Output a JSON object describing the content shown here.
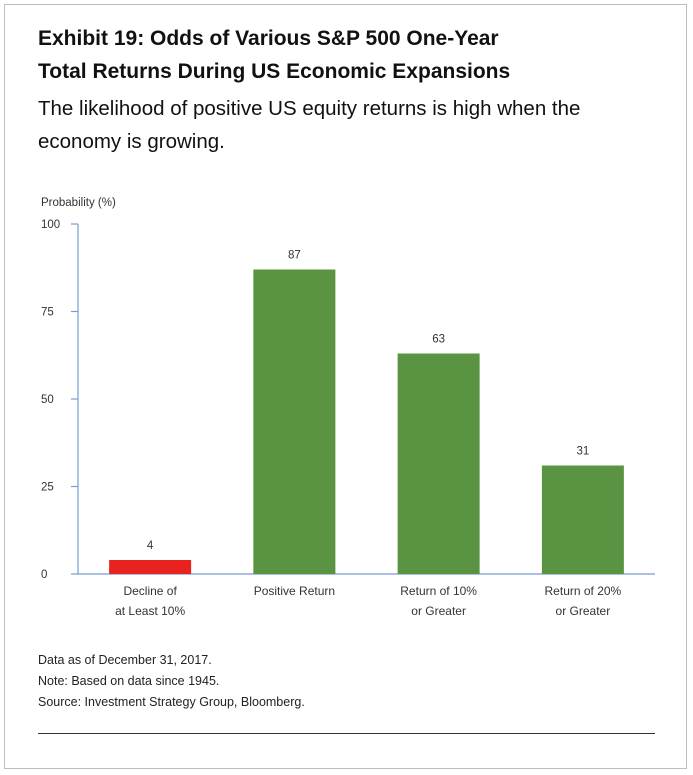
{
  "header": {
    "title_line1": "Exhibit 19: Odds of Various S&P 500 One-Year",
    "title_line2": "Total Returns During US Economic Expansions",
    "subtitle_line1": "The likelihood of positive US equity returns is high when the",
    "subtitle_line2": "economy is growing."
  },
  "chart_data": {
    "type": "bar",
    "title": "",
    "xlabel": "",
    "ylabel": "Probability (%)",
    "ylim": [
      0,
      100
    ],
    "yticks": [
      0,
      25,
      50,
      75,
      100
    ],
    "grid": false,
    "categories": [
      [
        "Decline of",
        "at Least 10%"
      ],
      [
        "Positive Return"
      ],
      [
        "Return of 10%",
        "or Greater"
      ],
      [
        "Return of 20%",
        "or Greater"
      ]
    ],
    "values": [
      4,
      87,
      63,
      31
    ],
    "data_labels": [
      "4",
      "87",
      "63",
      "31"
    ],
    "colors": [
      "#e8231f",
      "#5a9442",
      "#5a9442",
      "#5a9442"
    ],
    "axis_color": "#7a9bd0"
  },
  "notes": {
    "line1": "Data as of December 31, 2017.",
    "line2": "Note: Based on data since 1945.",
    "line3": "Source: Investment Strategy Group, Bloomberg."
  }
}
